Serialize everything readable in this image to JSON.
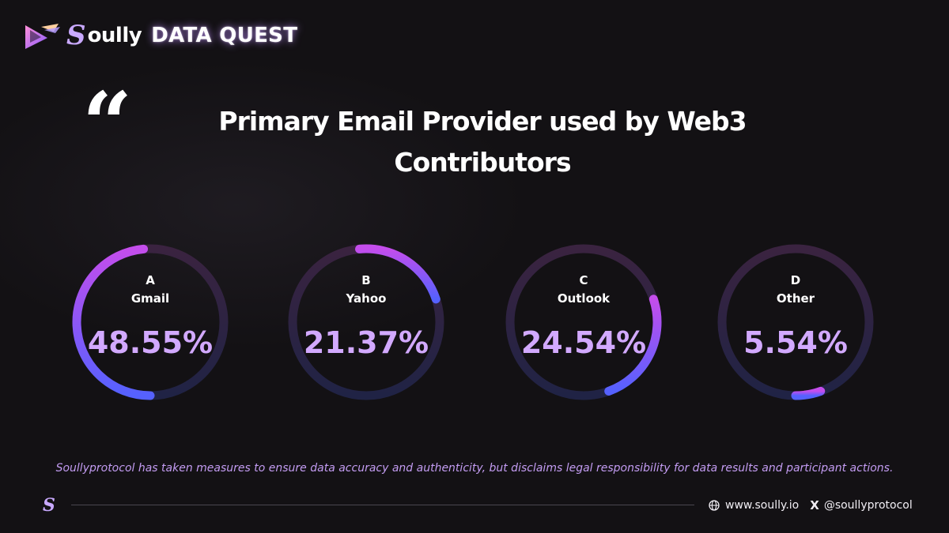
{
  "header": {
    "brand_initial": "S",
    "brand_word": "oully",
    "brand_sub": "DATA QUEST",
    "logo_icon": "play-triangle-icon"
  },
  "quote_icon": "quote-mark-icon",
  "title_line1": "Primary Email Provider used by Web3",
  "title_line2": "Contributors",
  "chart_data": {
    "type": "pie",
    "title": "Primary Email Provider used by Web3 Contributors",
    "categories": [
      "Gmail",
      "Yahoo",
      "Outlook",
      "Other"
    ],
    "series": [
      {
        "letter": "A",
        "name": "Gmail",
        "value": 48.55,
        "label": "48.55%"
      },
      {
        "letter": "B",
        "name": "Yahoo",
        "value": 21.37,
        "label": "21.37%"
      },
      {
        "letter": "C",
        "name": "Outlook",
        "value": 24.54,
        "label": "24.54%"
      },
      {
        "letter": "D",
        "name": "Other",
        "value": 5.54,
        "label": "5.54%"
      }
    ],
    "unit": "%",
    "colors": {
      "track_top": "#3a2340",
      "track_bottom": "#202345",
      "progress_blue": "#5561ff",
      "progress_purple": "#c44dec",
      "value_text": "#d2a9ff"
    }
  },
  "disclaimer": "Soullyprotocol has taken measures to ensure data accuracy and authenticity, but disclaims legal responsibility for data results and participant actions.",
  "footer": {
    "logo_initial": "S",
    "website": "www.soully.io",
    "x_glyph": "X",
    "handle": "@soullyprotocol",
    "globe_icon": "globe-icon",
    "x_icon": "x-logo-icon"
  }
}
